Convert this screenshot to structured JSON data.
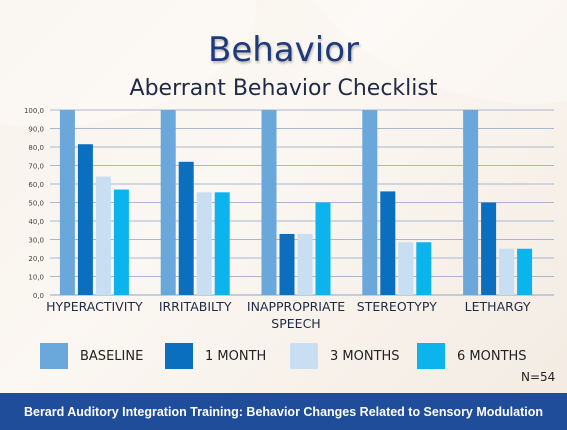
{
  "slide": {
    "title": "Behavior",
    "subtitle": "Aberrant Behavior Checklist",
    "note": "N=54",
    "footer": "Berard Auditory Integration Training: Behavior Changes Related to Sensory Modulation"
  },
  "chart_data": {
    "type": "bar",
    "title": "",
    "xlabel": "",
    "ylabel": "",
    "ylim": [
      0,
      100
    ],
    "yticks": [
      "0,0",
      "10,0",
      "20,0",
      "30,0",
      "40,0",
      "50,0",
      "60,0",
      "70,0",
      "80,0",
      "90,0",
      "100,0"
    ],
    "grid": true,
    "legend_position": "bottom",
    "categories": [
      [
        "HYPERACTIVITY"
      ],
      [
        "IRRITABILTY"
      ],
      [
        "INAPPROPRIATE",
        "SPEECH"
      ],
      [
        "STEREOTYPY"
      ],
      [
        "LETHARGY"
      ]
    ],
    "series": [
      {
        "name": "BASELINE",
        "color": "#6aa8dc",
        "values": [
          100,
          100,
          100,
          100,
          100
        ]
      },
      {
        "name": "1 MONTH",
        "color": "#0b6fc0",
        "values": [
          81.5,
          72,
          33,
          56,
          50
        ]
      },
      {
        "name": "3 MONTHS",
        "color": "#c8def2",
        "values": [
          64,
          55.5,
          33,
          28.5,
          25
        ]
      },
      {
        "name": "6 MONTHS",
        "color": "#0cb4ee",
        "values": [
          57,
          55.5,
          50,
          28.5,
          25
        ]
      }
    ]
  }
}
